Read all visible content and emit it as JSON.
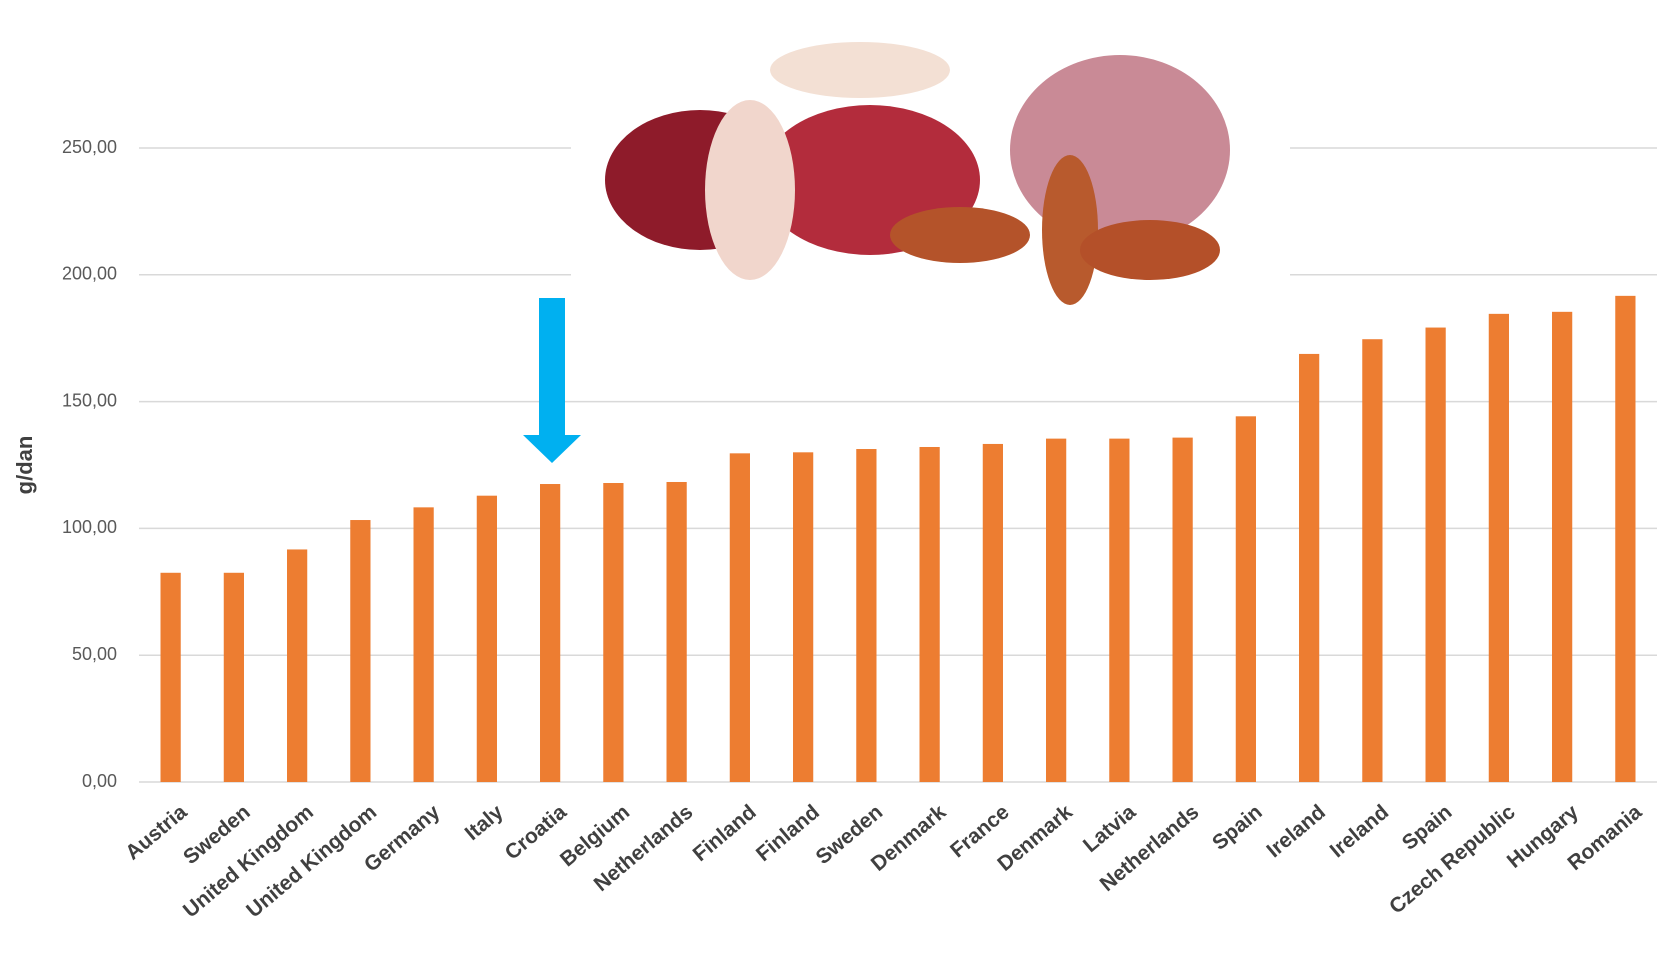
{
  "chart_data": {
    "type": "bar",
    "y_label": "g/dan",
    "categories": [
      "Austria",
      "Sweden",
      "United Kingdom",
      "United Kingdom",
      "Germany",
      "Italy",
      "Croatia",
      "Belgium",
      "Netherlands",
      "Finland",
      "Finland",
      "Sweden",
      "Denmark",
      "France",
      "Denmark",
      "Latvia",
      "Netherlands",
      "Spain",
      "Ireland",
      "Ireland",
      "Spain",
      "Czech Republic",
      "Hungary",
      "Romania"
    ],
    "values": [
      82.5,
      82.5,
      91.7,
      103.3,
      108.3,
      112.9,
      117.5,
      117.9,
      118.3,
      129.6,
      130,
      131.3,
      132.1,
      133.3,
      135.4,
      135.4,
      135.8,
      144.2,
      168.8,
      174.6,
      179.2,
      184.6,
      185.4,
      191.7
    ],
    "color": "#ed7d31",
    "ylim": [
      0,
      250
    ],
    "yticks": [
      {
        "value": 0,
        "label": "0,00"
      },
      {
        "value": 50,
        "label": "50,00"
      },
      {
        "value": 100,
        "label": "100,00"
      },
      {
        "value": 150,
        "label": "150,00"
      },
      {
        "value": 200,
        "label": "200,00"
      },
      {
        "value": 250,
        "label": "250,00"
      }
    ],
    "grid": true
  }
}
